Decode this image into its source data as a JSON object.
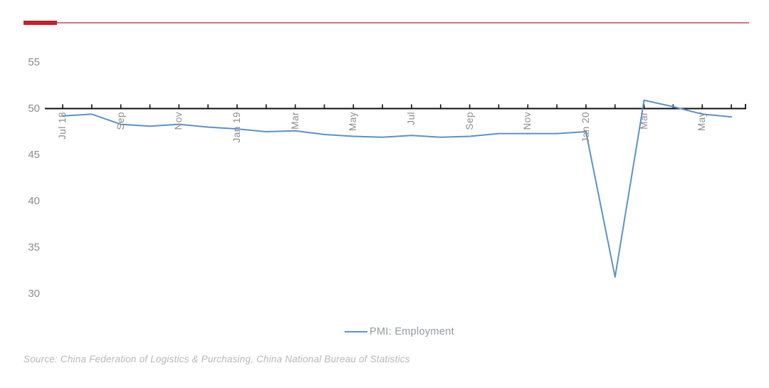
{
  "colors": {
    "accent_bar": "#c0232c",
    "accent_rule": "#c57d82",
    "line_blue": "#5b92c7",
    "axis_black": "#111111",
    "tick_label_gray": "#8c8c8c",
    "legend_gray": "#97999b",
    "source_gray": "#b8b8b8"
  },
  "chart_data": {
    "type": "line",
    "title": "",
    "xlabel": "",
    "ylabel": "",
    "categories": [
      "Jul 18",
      "Aug 18",
      "Sep 18",
      "Oct 18",
      "Nov 18",
      "Dec 18",
      "Jan 19",
      "Feb 19",
      "Mar 19",
      "Apr 19",
      "May 19",
      "Jun 19",
      "Jul 19",
      "Aug 19",
      "Sep 19",
      "Oct 19",
      "Nov 19",
      "Dec 19",
      "Jan 20",
      "Feb 20",
      "Mar 20",
      "Apr 20",
      "May 20",
      "Jun 20"
    ],
    "series": [
      {
        "name": "PMI: Employment",
        "color": "#5b92c7",
        "values": [
          49.2,
          49.4,
          48.3,
          48.1,
          48.3,
          48.0,
          47.8,
          47.5,
          47.6,
          47.2,
          47.0,
          46.9,
          47.1,
          46.9,
          47.0,
          47.3,
          47.3,
          47.3,
          47.5,
          31.8,
          50.9,
          50.2,
          49.4,
          49.1
        ]
      }
    ],
    "x_tick_labels": [
      "Jul 18",
      "Sep",
      "Nov",
      "Jan 19",
      "Mar",
      "May",
      "Jul",
      "Sep",
      "Nov",
      "Jan 20",
      "Mar",
      "May"
    ],
    "x_label_interval": 2,
    "y_ticks": [
      55,
      50,
      45,
      40,
      35,
      30
    ],
    "baseline_value": 50,
    "ylim": [
      27.5,
      57.5
    ],
    "grid": "off",
    "legend_position": "bottom-center"
  },
  "footer": {
    "source": "Source: China Federation of Logistics & Purchasing, China National Bureau of Statistics"
  }
}
